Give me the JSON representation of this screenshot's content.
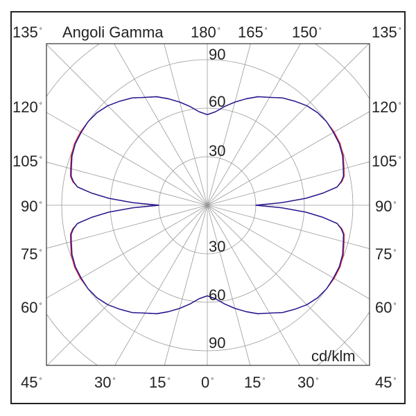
{
  "chart_data": {
    "type": "polar",
    "title": "Angoli Gamma",
    "unit": "cd/klm",
    "radial_ticks": [
      30,
      60,
      90
    ],
    "radial_grid": [
      30,
      60,
      90,
      120
    ],
    "angle_step": 15,
    "grid": true,
    "angle_labels": {
      "top": [
        "180",
        "165",
        "150",
        "135"
      ],
      "top_left": "135",
      "left": [
        "120",
        "105",
        "90",
        "75",
        "60",
        "45"
      ],
      "right": [
        "135",
        "120",
        "105",
        "90",
        "75",
        "60",
        "45"
      ],
      "bottom": [
        "45",
        "30",
        "15",
        "0",
        "15",
        "30",
        "45"
      ]
    },
    "gamma": [
      0,
      5,
      10,
      15,
      20,
      25,
      30,
      35,
      40,
      45,
      50,
      55,
      60,
      65,
      70,
      75,
      78,
      80,
      82,
      84,
      86,
      88,
      90
    ],
    "series": [
      {
        "color": "#e0202a",
        "values": [
          56,
          58,
          62,
          66,
          70,
          74,
          77,
          81,
          84,
          87,
          89,
          90,
          90.5,
          90.5,
          89.5,
          87.5,
          86.5,
          84.5,
          81,
          72,
          61,
          46,
          30
        ]
      },
      {
        "color": "#1a1a9a",
        "values": [
          56,
          58,
          62,
          66,
          70,
          74,
          77,
          81,
          84,
          87,
          89,
          90,
          90,
          90,
          89,
          87,
          86,
          84,
          81,
          72,
          61,
          46,
          30
        ]
      }
    ]
  }
}
